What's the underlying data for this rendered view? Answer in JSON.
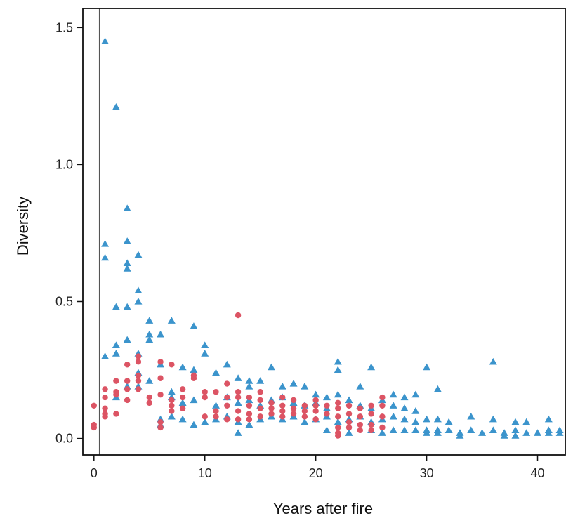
{
  "chart_data": {
    "type": "scatter",
    "title": "",
    "xlabel": "Years after fire",
    "ylabel": "Diversity",
    "xlim": [
      -1,
      42.5
    ],
    "ylim": [
      -0.06,
      1.57
    ],
    "xticks": [
      0,
      10,
      20,
      30,
      40
    ],
    "xtick_labels": [
      "0",
      "10",
      "20",
      "30",
      "40"
    ],
    "yticks": [
      0.0,
      0.5,
      1.0,
      1.5
    ],
    "ytick_labels": [
      "0.0",
      "0.5",
      "1.0",
      "1.5"
    ],
    "grid": false,
    "legend": "none",
    "reference_line_x": 0.5,
    "series": [
      {
        "marker": "triangle",
        "color": "#3b94cc",
        "points": [
          [
            1,
            1.45
          ],
          [
            2,
            1.21
          ],
          [
            3,
            0.84
          ],
          [
            1,
            0.71
          ],
          [
            3,
            0.72
          ],
          [
            1,
            0.66
          ],
          [
            4,
            0.67
          ],
          [
            3,
            0.64
          ],
          [
            3,
            0.62
          ],
          [
            4,
            0.54
          ],
          [
            4,
            0.5
          ],
          [
            2,
            0.48
          ],
          [
            3,
            0.48
          ],
          [
            5,
            0.43
          ],
          [
            7,
            0.43
          ],
          [
            9,
            0.41
          ],
          [
            5,
            0.38
          ],
          [
            6,
            0.38
          ],
          [
            5,
            0.36
          ],
          [
            3,
            0.36
          ],
          [
            2,
            0.34
          ],
          [
            10,
            0.34
          ],
          [
            2,
            0.31
          ],
          [
            10,
            0.31
          ],
          [
            1,
            0.3
          ],
          [
            4,
            0.31
          ],
          [
            8,
            0.26
          ],
          [
            9,
            0.25
          ],
          [
            11,
            0.24
          ],
          [
            12,
            0.27
          ],
          [
            16,
            0.26
          ],
          [
            22,
            0.28
          ],
          [
            22,
            0.25
          ],
          [
            25,
            0.26
          ],
          [
            30,
            0.26
          ],
          [
            36,
            0.28
          ],
          [
            4,
            0.24
          ],
          [
            6,
            0.27
          ],
          [
            5,
            0.21
          ],
          [
            7,
            0.17
          ],
          [
            13,
            0.22
          ],
          [
            14,
            0.21
          ],
          [
            15,
            0.21
          ],
          [
            14,
            0.19
          ],
          [
            17,
            0.19
          ],
          [
            18,
            0.2
          ],
          [
            19,
            0.19
          ],
          [
            24,
            0.19
          ],
          [
            20,
            0.16
          ],
          [
            21,
            0.15
          ],
          [
            22,
            0.16
          ],
          [
            27,
            0.16
          ],
          [
            28,
            0.15
          ],
          [
            29,
            0.16
          ],
          [
            31,
            0.18
          ],
          [
            2,
            0.15
          ],
          [
            4,
            0.19
          ],
          [
            3,
            0.19
          ],
          [
            7,
            0.15
          ],
          [
            8,
            0.13
          ],
          [
            9,
            0.14
          ],
          [
            11,
            0.12
          ],
          [
            12,
            0.15
          ],
          [
            13,
            0.13
          ],
          [
            14,
            0.14
          ],
          [
            15,
            0.12
          ],
          [
            16,
            0.14
          ],
          [
            17,
            0.15
          ],
          [
            18,
            0.13
          ],
          [
            19,
            0.12
          ],
          [
            20,
            0.13
          ],
          [
            21,
            0.11
          ],
          [
            23,
            0.14
          ],
          [
            24,
            0.12
          ],
          [
            25,
            0.11
          ],
          [
            26,
            0.14
          ],
          [
            27,
            0.12
          ],
          [
            28,
            0.11
          ],
          [
            29,
            0.1
          ],
          [
            6,
            0.07
          ],
          [
            7,
            0.08
          ],
          [
            8,
            0.07
          ],
          [
            10,
            0.06
          ],
          [
            11,
            0.07
          ],
          [
            12,
            0.08
          ],
          [
            13,
            0.06
          ],
          [
            15,
            0.07
          ],
          [
            16,
            0.08
          ],
          [
            17,
            0.07
          ],
          [
            18,
            0.08
          ],
          [
            19,
            0.06
          ],
          [
            20,
            0.07
          ],
          [
            21,
            0.08
          ],
          [
            22,
            0.06
          ],
          [
            23,
            0.07
          ],
          [
            24,
            0.08
          ],
          [
            25,
            0.06
          ],
          [
            26,
            0.07
          ],
          [
            27,
            0.08
          ],
          [
            28,
            0.07
          ],
          [
            29,
            0.06
          ],
          [
            30,
            0.07
          ],
          [
            31,
            0.07
          ],
          [
            32,
            0.06
          ],
          [
            34,
            0.08
          ],
          [
            36,
            0.07
          ],
          [
            38,
            0.06
          ],
          [
            39,
            0.06
          ],
          [
            41,
            0.07
          ],
          [
            6,
            0.05
          ],
          [
            9,
            0.05
          ],
          [
            14,
            0.05
          ],
          [
            21,
            0.03
          ],
          [
            25,
            0.03
          ],
          [
            27,
            0.03
          ],
          [
            28,
            0.03
          ],
          [
            29,
            0.03
          ],
          [
            30,
            0.02
          ],
          [
            30,
            0.03
          ],
          [
            31,
            0.03
          ],
          [
            31,
            0.02
          ],
          [
            32,
            0.03
          ],
          [
            33,
            0.02
          ],
          [
            33,
            0.01
          ],
          [
            34,
            0.03
          ],
          [
            35,
            0.02
          ],
          [
            36,
            0.03
          ],
          [
            37,
            0.02
          ],
          [
            37,
            0.01
          ],
          [
            38,
            0.03
          ],
          [
            38,
            0.01
          ],
          [
            39,
            0.02
          ],
          [
            40,
            0.02
          ],
          [
            41,
            0.02
          ],
          [
            41,
            0.03
          ],
          [
            42,
            0.02
          ],
          [
            42,
            0.03
          ],
          [
            13,
            0.02
          ],
          [
            26,
            0.02
          ],
          [
            23,
            0.02
          ]
        ]
      },
      {
        "marker": "circle",
        "color": "#dc5464",
        "points": [
          [
            0,
            0.12
          ],
          [
            0,
            0.05
          ],
          [
            0,
            0.04
          ],
          [
            1,
            0.18
          ],
          [
            1,
            0.15
          ],
          [
            1,
            0.11
          ],
          [
            1,
            0.09
          ],
          [
            1,
            0.08
          ],
          [
            2,
            0.21
          ],
          [
            2,
            0.17
          ],
          [
            2,
            0.16
          ],
          [
            2,
            0.09
          ],
          [
            3,
            0.27
          ],
          [
            3,
            0.21
          ],
          [
            3,
            0.18
          ],
          [
            3,
            0.14
          ],
          [
            4,
            0.3
          ],
          [
            4,
            0.28
          ],
          [
            4,
            0.23
          ],
          [
            4,
            0.21
          ],
          [
            4,
            0.18
          ],
          [
            5,
            0.15
          ],
          [
            5,
            0.13
          ],
          [
            6,
            0.28
          ],
          [
            6,
            0.22
          ],
          [
            6,
            0.16
          ],
          [
            6,
            0.06
          ],
          [
            6,
            0.04
          ],
          [
            7,
            0.27
          ],
          [
            7,
            0.14
          ],
          [
            7,
            0.12
          ],
          [
            7,
            0.1
          ],
          [
            8,
            0.18
          ],
          [
            8,
            0.15
          ],
          [
            8,
            0.11
          ],
          [
            9,
            0.23
          ],
          [
            9,
            0.22
          ],
          [
            10,
            0.17
          ],
          [
            10,
            0.15
          ],
          [
            10,
            0.08
          ],
          [
            11,
            0.17
          ],
          [
            11,
            0.1
          ],
          [
            11,
            0.08
          ],
          [
            12,
            0.2
          ],
          [
            12,
            0.15
          ],
          [
            12,
            0.12
          ],
          [
            12,
            0.07
          ],
          [
            13,
            0.45
          ],
          [
            13,
            0.17
          ],
          [
            13,
            0.15
          ],
          [
            13,
            0.1
          ],
          [
            13,
            0.07
          ],
          [
            14,
            0.15
          ],
          [
            14,
            0.12
          ],
          [
            14,
            0.09
          ],
          [
            14,
            0.07
          ],
          [
            15,
            0.17
          ],
          [
            15,
            0.14
          ],
          [
            15,
            0.11
          ],
          [
            15,
            0.08
          ],
          [
            16,
            0.13
          ],
          [
            16,
            0.11
          ],
          [
            16,
            0.09
          ],
          [
            17,
            0.15
          ],
          [
            17,
            0.12
          ],
          [
            17,
            0.1
          ],
          [
            17,
            0.08
          ],
          [
            18,
            0.14
          ],
          [
            18,
            0.11
          ],
          [
            18,
            0.09
          ],
          [
            19,
            0.12
          ],
          [
            19,
            0.1
          ],
          [
            19,
            0.08
          ],
          [
            20,
            0.14
          ],
          [
            20,
            0.12
          ],
          [
            20,
            0.1
          ],
          [
            20,
            0.07
          ],
          [
            21,
            0.12
          ],
          [
            21,
            0.09
          ],
          [
            22,
            0.13
          ],
          [
            22,
            0.11
          ],
          [
            22,
            0.08
          ],
          [
            22,
            0.04
          ],
          [
            22,
            0.02
          ],
          [
            22,
            0.01
          ],
          [
            23,
            0.12
          ],
          [
            23,
            0.09
          ],
          [
            23,
            0.06
          ],
          [
            23,
            0.04
          ],
          [
            24,
            0.11
          ],
          [
            24,
            0.08
          ],
          [
            24,
            0.05
          ],
          [
            24,
            0.03
          ],
          [
            25,
            0.12
          ],
          [
            25,
            0.09
          ],
          [
            25,
            0.05
          ],
          [
            25,
            0.03
          ],
          [
            26,
            0.15
          ],
          [
            26,
            0.12
          ],
          [
            26,
            0.08
          ],
          [
            26,
            0.04
          ]
        ]
      }
    ]
  }
}
